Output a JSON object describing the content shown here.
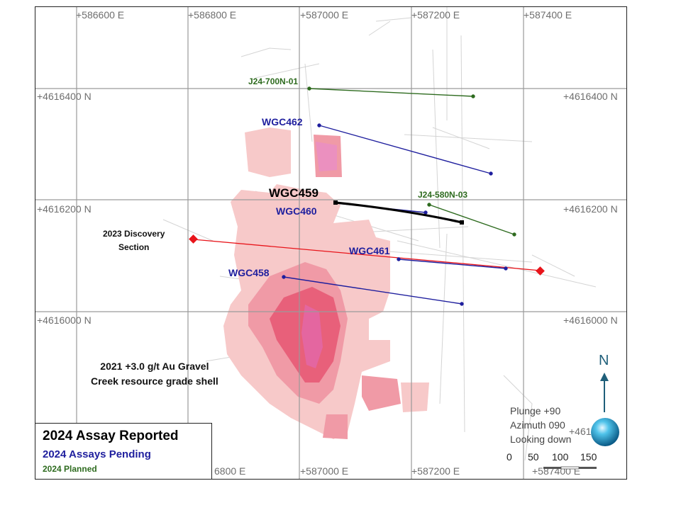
{
  "grid": {
    "top_easting": [
      "+586600 E",
      "+586800 E",
      "+587000 E",
      "+587200 E",
      "+587400 E"
    ],
    "bottom_easting": [
      "6800 E",
      "+587000 E",
      "+587200 E",
      "+587400 E"
    ],
    "left_northing": [
      "+4616400 N",
      "+4616200 N",
      "+4616000 N"
    ],
    "right_northing": [
      "+4616400 N",
      "+4616200 N",
      "+4616000 N",
      "+461"
    ]
  },
  "holes": {
    "wgc462": "WGC462",
    "wgc459": "WGC459",
    "wgc460": "WGC460",
    "wgc461": "WGC461",
    "wgc458": "WGC458",
    "j24_700n_01": "J24-700N-01",
    "j24_580n_03": "J24-580N-03"
  },
  "annotations": {
    "discovery_line1": "2023 Discovery",
    "discovery_line2": "Section",
    "shell_line1": "2021 +3.0 g/t Au Gravel",
    "shell_line2": "Creek resource grade shell"
  },
  "legend": {
    "reported": "2024 Assay Reported",
    "pending": "2024 Assays Pending",
    "planned": "2024 Planned"
  },
  "view": {
    "plunge": "Plunge +90",
    "azimuth": "Azimuth 090",
    "looking": "Looking down"
  },
  "scale_bar": {
    "labels": [
      "0",
      "50",
      "100",
      "150"
    ]
  },
  "north_label": "N",
  "colors": {
    "reported": "#000000",
    "pending": "#1f1f9e",
    "planned": "#2e6b1f",
    "discovery": "#e8141a",
    "shell_light": "#f7c9c9",
    "shell_mid": "#f09aa6",
    "shell_dark": "#e8607a"
  }
}
